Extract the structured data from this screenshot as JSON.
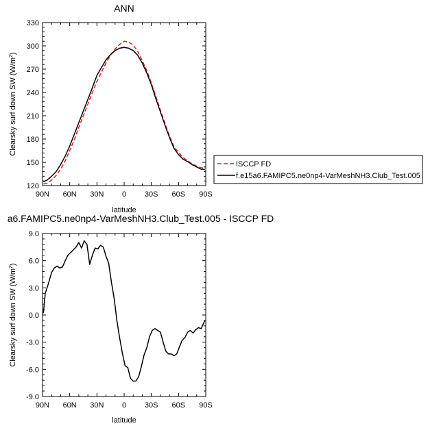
{
  "chart_data": [
    {
      "type": "line",
      "title": "ANN",
      "xlabel": "latitude",
      "ylabel": "Clearsky surf down SW (W/m²)",
      "ylabel_base": "Clearsky surf down SW (W/m",
      "ylabel_sup": "2",
      "ylabel_tail": ")",
      "xlim": [
        90,
        -90
      ],
      "ylim": [
        120,
        330
      ],
      "x_ticks": [
        90,
        60,
        30,
        0,
        -30,
        -60,
        -90
      ],
      "x_tick_labels": [
        "90N",
        "60N",
        "30N",
        "0",
        "30S",
        "60S",
        "90S"
      ],
      "y_ticks": [
        120,
        150,
        180,
        210,
        240,
        270,
        300,
        330
      ],
      "y_tick_labels": [
        "120",
        "150",
        "180",
        "210",
        "240",
        "270",
        "300",
        "330"
      ],
      "legend_position": "right",
      "series": [
        {
          "name": "ISCCP FD",
          "color": "#e31a1c",
          "dash": "dashed",
          "x": [
            89,
            85,
            80,
            75,
            70,
            65,
            60,
            55,
            50,
            45,
            40,
            35,
            30,
            25,
            20,
            15,
            10,
            5,
            0,
            -5,
            -10,
            -15,
            -20,
            -25,
            -30,
            -35,
            -40,
            -45,
            -50,
            -55,
            -60,
            -65,
            -70,
            -75,
            -80,
            -85,
            -89
          ],
          "y": [
            122,
            123,
            127,
            133,
            141,
            152,
            165,
            179,
            195,
            210,
            225,
            240,
            254,
            266,
            278,
            288,
            296,
            302,
            306,
            305,
            301,
            293,
            281,
            268,
            252,
            235,
            217,
            200,
            184,
            170,
            163,
            156,
            152,
            148,
            145,
            143,
            142
          ]
        },
        {
          "name": "f.e15a6.FAMIPC5.ne0np4-VarMeshNH3.Club_Test.005",
          "color": "#000000",
          "dash": "solid",
          "x": [
            89,
            85,
            80,
            75,
            70,
            65,
            60,
            55,
            50,
            45,
            40,
            35,
            30,
            25,
            20,
            15,
            10,
            5,
            0,
            -5,
            -10,
            -15,
            -20,
            -25,
            -30,
            -35,
            -40,
            -45,
            -50,
            -55,
            -60,
            -65,
            -70,
            -75,
            -80,
            -85,
            -89
          ],
          "y": [
            125,
            127,
            132,
            138,
            147,
            158,
            171,
            186,
            201,
            216,
            231,
            246,
            262,
            272,
            282,
            289,
            294,
            297,
            298,
            297,
            294,
            288,
            278,
            265,
            250,
            232,
            215,
            198,
            182,
            168,
            160,
            154,
            151,
            147,
            144,
            141,
            141
          ]
        }
      ]
    },
    {
      "type": "line",
      "title": "a6.FAMIPC5.ne0np4-VarMeshNH3.Club_Test.005 - ISCCP FD",
      "xlabel": "latitude",
      "ylabel": "Clearsky surf down SW (W/m²)",
      "ylabel_base": "Clearsky surf down SW (W/m",
      "ylabel_sup": "2",
      "ylabel_tail": ")",
      "xlim": [
        90,
        -90
      ],
      "ylim": [
        -9,
        9
      ],
      "x_ticks": [
        90,
        60,
        30,
        0,
        -30,
        -60,
        -90
      ],
      "x_tick_labels": [
        "90N",
        "60N",
        "30N",
        "0",
        "30S",
        "60S",
        "90S"
      ],
      "y_ticks": [
        -9,
        -6,
        -3,
        0,
        3,
        6,
        9
      ],
      "y_tick_labels": [
        "-9.0",
        "-6.0",
        "-3.0",
        "0.0",
        "3.0",
        "6.0",
        "9.0"
      ],
      "series": [
        {
          "color": "#000000",
          "dash": "solid",
          "x": [
            89,
            87,
            84,
            80,
            77,
            74,
            71,
            68,
            65,
            62,
            59,
            56,
            53,
            50,
            47,
            44,
            41,
            38,
            35,
            32,
            29,
            26,
            23,
            20,
            17,
            14,
            11,
            8,
            5,
            2,
            -1,
            -4,
            -7,
            -10,
            -13,
            -16,
            -19,
            -22,
            -25,
            -28,
            -31,
            -34,
            -37,
            -40,
            -43,
            -46,
            -49,
            -52,
            -55,
            -58,
            -61,
            -64,
            -67,
            -70,
            -73,
            -76,
            -79,
            -82,
            -85,
            -89
          ],
          "y": [
            0.2,
            2.4,
            3.3,
            4.7,
            5.2,
            5.4,
            5.2,
            5.3,
            6.0,
            6.6,
            6.9,
            7.2,
            7.5,
            8.0,
            7.4,
            8.2,
            7.8,
            5.6,
            6.6,
            7.4,
            7.3,
            7.7,
            7.5,
            6.5,
            5.7,
            3.6,
            1.8,
            -0.6,
            -2.5,
            -4.2,
            -5.6,
            -5.8,
            -7.0,
            -7.3,
            -7.3,
            -6.8,
            -5.7,
            -4.4,
            -3.6,
            -2.4,
            -1.7,
            -1.5,
            -1.7,
            -1.9,
            -3.0,
            -4.0,
            -4.3,
            -4.3,
            -4.5,
            -4.3,
            -3.5,
            -2.8,
            -2.5,
            -1.9,
            -1.7,
            -2.0,
            -1.6,
            -1.4,
            -1.5,
            -0.6
          ]
        }
      ]
    }
  ]
}
